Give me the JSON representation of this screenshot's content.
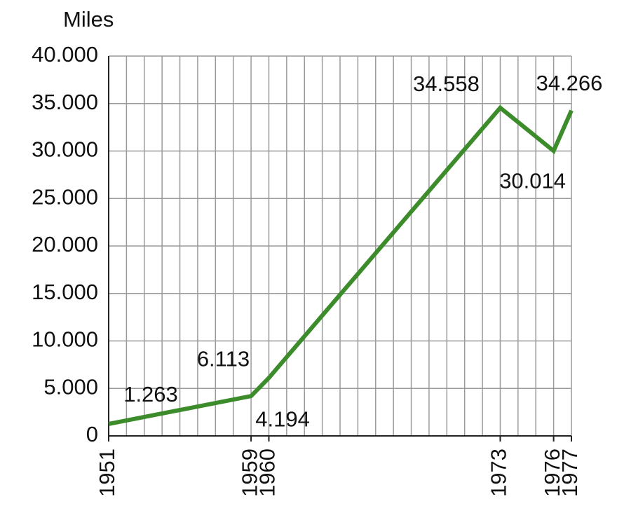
{
  "chart_data": {
    "type": "line",
    "y_label": "Miles",
    "x": [
      1951,
      1959,
      1960,
      1973,
      1976,
      1977
    ],
    "series": [
      {
        "color": "#3d8c2c",
        "values": [
          1263,
          4194,
          6113,
          34558,
          30014,
          34266
        ],
        "value_labels": [
          "1.263",
          "4.194",
          "6.113",
          "34.558",
          "30.014",
          "34.266"
        ]
      }
    ],
    "xlim": [
      1951,
      1977
    ],
    "xticks": [
      1951,
      1959,
      1960,
      1973,
      1976,
      1977
    ],
    "x_minor_ticks": [
      1951,
      1952,
      1953,
      1954,
      1955,
      1956,
      1957,
      1958,
      1959,
      1960,
      1961,
      1962,
      1963,
      1964,
      1965,
      1966,
      1967,
      1968,
      1969,
      1970,
      1971,
      1972,
      1973,
      1974,
      1975,
      1976,
      1977
    ],
    "ylim": [
      0,
      40000
    ],
    "yticks": [
      0,
      {
        "value": 5000,
        "label": "5.000"
      },
      {
        "value": 10000,
        "label": "10.000"
      },
      {
        "value": 15000,
        "label": "15.000"
      },
      {
        "value": 20000,
        "label": "20.000"
      },
      {
        "value": 25000,
        "label": "25.000"
      },
      {
        "value": 30000,
        "label": "30.000"
      },
      {
        "value": 35000,
        "label": "35.000"
      },
      {
        "value": 40000,
        "label": "40.000"
      }
    ],
    "grid": true
  }
}
